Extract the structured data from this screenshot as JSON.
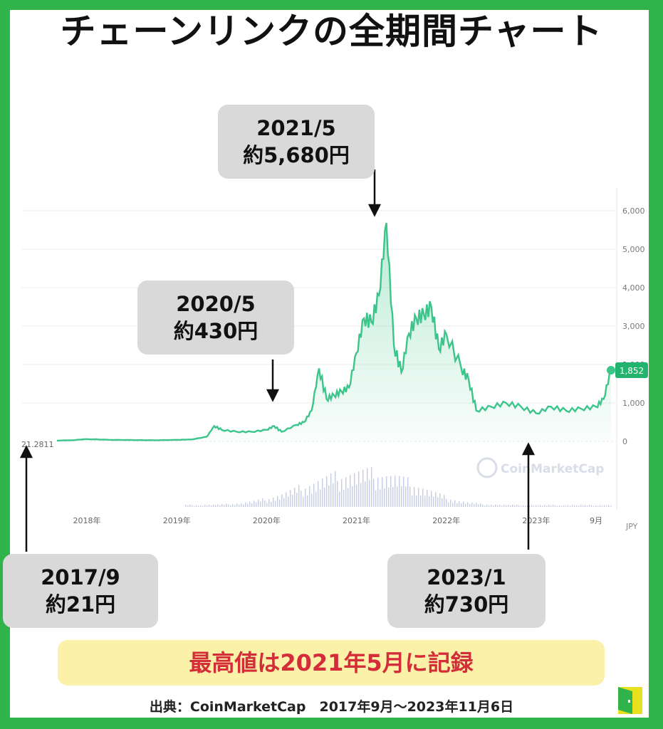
{
  "title": "チェーンリンクの全期間チャート",
  "chart_data": {
    "type": "area",
    "ylim": [
      0,
      6000
    ],
    "y_ticks": [
      "0",
      "1,000",
      "2,000",
      "3,000",
      "4,000",
      "5,000",
      "6,000"
    ],
    "x_tick_labels": [
      "2018年",
      "2019年",
      "2020年",
      "2021年",
      "2022年",
      "2023年",
      "9月"
    ],
    "x_tick_dates": [
      "2018-01",
      "2019-01",
      "2020-01",
      "2021-01",
      "2022-01",
      "2023-01",
      "2023-09"
    ],
    "x_range": [
      "2017-09",
      "2023-11"
    ],
    "start_label": "21.2811",
    "current_value_label": "1,852",
    "unit_cut": "JPY",
    "watermark": "CoinMarketCap",
    "line_color": "#3cc48a",
    "series_points": [
      [
        "2017-09",
        21
      ],
      [
        "2017-11",
        30
      ],
      [
        "2018-01",
        60
      ],
      [
        "2018-04",
        40
      ],
      [
        "2018-07",
        35
      ],
      [
        "2018-10",
        30
      ],
      [
        "2019-01",
        40
      ],
      [
        "2019-03",
        50
      ],
      [
        "2019-05",
        120
      ],
      [
        "2019-06",
        400
      ],
      [
        "2019-07",
        300
      ],
      [
        "2019-09",
        250
      ],
      [
        "2019-11",
        250
      ],
      [
        "2020-01",
        300
      ],
      [
        "2020-02",
        400
      ],
      [
        "2020-03",
        250
      ],
      [
        "2020-05",
        430
      ],
      [
        "2020-06",
        500
      ],
      [
        "2020-07",
        800
      ],
      [
        "2020-08",
        1900
      ],
      [
        "2020-09",
        1100
      ],
      [
        "2020-10",
        1200
      ],
      [
        "2020-11",
        1300
      ],
      [
        "2020-12",
        1400
      ],
      [
        "2021-01",
        2300
      ],
      [
        "2021-02",
        3200
      ],
      [
        "2021-03",
        3100
      ],
      [
        "2021-04",
        3800
      ],
      [
        "2021-05",
        5680
      ],
      [
        "2021-06",
        2500
      ],
      [
        "2021-07",
        1800
      ],
      [
        "2021-08",
        2800
      ],
      [
        "2021-09",
        3200
      ],
      [
        "2021-10",
        3300
      ],
      [
        "2021-11",
        3500
      ],
      [
        "2021-12",
        2400
      ],
      [
        "2022-01",
        2800
      ],
      [
        "2022-03",
        1900
      ],
      [
        "2022-04",
        1600
      ],
      [
        "2022-05",
        800
      ],
      [
        "2022-07",
        900
      ],
      [
        "2022-09",
        1000
      ],
      [
        "2022-11",
        900
      ],
      [
        "2023-01",
        730
      ],
      [
        "2023-03",
        900
      ],
      [
        "2023-05",
        800
      ],
      [
        "2023-07",
        850
      ],
      [
        "2023-09",
        900
      ],
      [
        "2023-10",
        1100
      ],
      [
        "2023-11",
        1852
      ]
    ]
  },
  "callouts": [
    {
      "date": "2017/9",
      "price": "約21円"
    },
    {
      "date": "2020/5",
      "price": "約430円"
    },
    {
      "date": "2021/5",
      "price": "約5,680円"
    },
    {
      "date": "2023/1",
      "price": "約730円"
    }
  ],
  "highlight": "最高値は2021年5月に記録",
  "source": "出典：CoinMarketCap　2017年9月〜2023年11月6日"
}
